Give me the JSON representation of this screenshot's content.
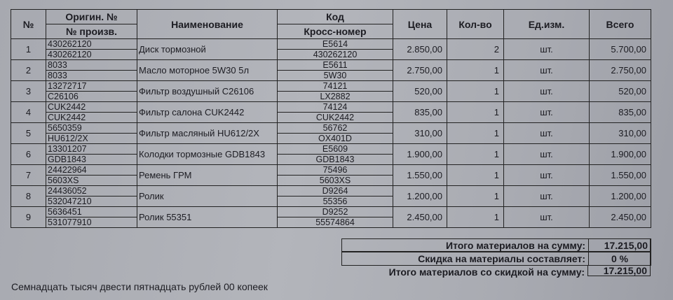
{
  "headers": {
    "num": "№",
    "orig_top": "Оригин. №",
    "orig_bottom": "№ произв.",
    "name": "Наименование",
    "code_top": "Код",
    "code_bottom": "Кросс-номер",
    "price": "Цена",
    "qty": "Кол-во",
    "unit": "Ед.изм.",
    "total": "Всего"
  },
  "rows": [
    {
      "num": "1",
      "orig": "430262120",
      "mfr": "430262120",
      "name": "Диск тормозной",
      "code": "E5614",
      "cross": "430262120",
      "price": "2.850,00",
      "qty": "2",
      "unit": "шт.",
      "total": "5.700,00"
    },
    {
      "num": "2",
      "orig": "8033",
      "mfr": "8033",
      "name": "Масло моторное 5W30 5л",
      "code": "E5611",
      "cross": "5W30",
      "price": "2.750,00",
      "qty": "1",
      "unit": "шт.",
      "total": "2.750,00"
    },
    {
      "num": "3",
      "orig": "13272717",
      "mfr": "C26106",
      "name": "Фильтр воздушный C26106",
      "code": "74121",
      "cross": "LX2882",
      "price": "520,00",
      "qty": "1",
      "unit": "шт.",
      "total": "520,00"
    },
    {
      "num": "4",
      "orig": "CUK2442",
      "mfr": "CUK2442",
      "name": "Фильтр салона CUK2442",
      "code": "74124",
      "cross": "CUK2442",
      "price": "835,00",
      "qty": "1",
      "unit": "шт.",
      "total": "835,00"
    },
    {
      "num": "5",
      "orig": "5650359",
      "mfr": "HU612/2X",
      "name": "Фильтр масляный HU612/2X",
      "code": "56762",
      "cross": "OX401D",
      "price": "310,00",
      "qty": "1",
      "unit": "шт.",
      "total": "310,00"
    },
    {
      "num": "6",
      "orig": "13301207",
      "mfr": "GDB1843",
      "name": "Колодки тормозные GDB1843",
      "code": "E5609",
      "cross": "GDB1843",
      "price": "1.900,00",
      "qty": "1",
      "unit": "шт.",
      "total": "1.900,00"
    },
    {
      "num": "7",
      "orig": "24422964",
      "mfr": "5603XS",
      "name": "Ремень ГРМ",
      "code": "75496",
      "cross": "5603XS",
      "price": "1.550,00",
      "qty": "1",
      "unit": "шт.",
      "total": "1.550,00"
    },
    {
      "num": "8",
      "orig": "24436052",
      "mfr": "532047210",
      "name": "Ролик",
      "code": "D9264",
      "cross": "55356",
      "price": "1.200,00",
      "qty": "1",
      "unit": "шт.",
      "total": "1.200,00"
    },
    {
      "num": "9",
      "orig": "5636451",
      "mfr": "531077910",
      "name": "Ролик 55351",
      "code": "D9252",
      "cross": "55574864",
      "price": "2.450,00",
      "qty": "1",
      "unit": "шт.",
      "total": "2.450,00"
    }
  ],
  "summary": {
    "total_label": "Итого материалов на сумму:",
    "total_value": "17.215,00",
    "discount_label": "Скидка на материалы составляет:",
    "discount_value": "0 %",
    "discounted_label": "Итого материалов со скидкой на сумму:",
    "discounted_value": "17.215,00"
  },
  "amount_in_words": "Семнадцать тысяч двести пятнадцать рублей 00 копеек"
}
